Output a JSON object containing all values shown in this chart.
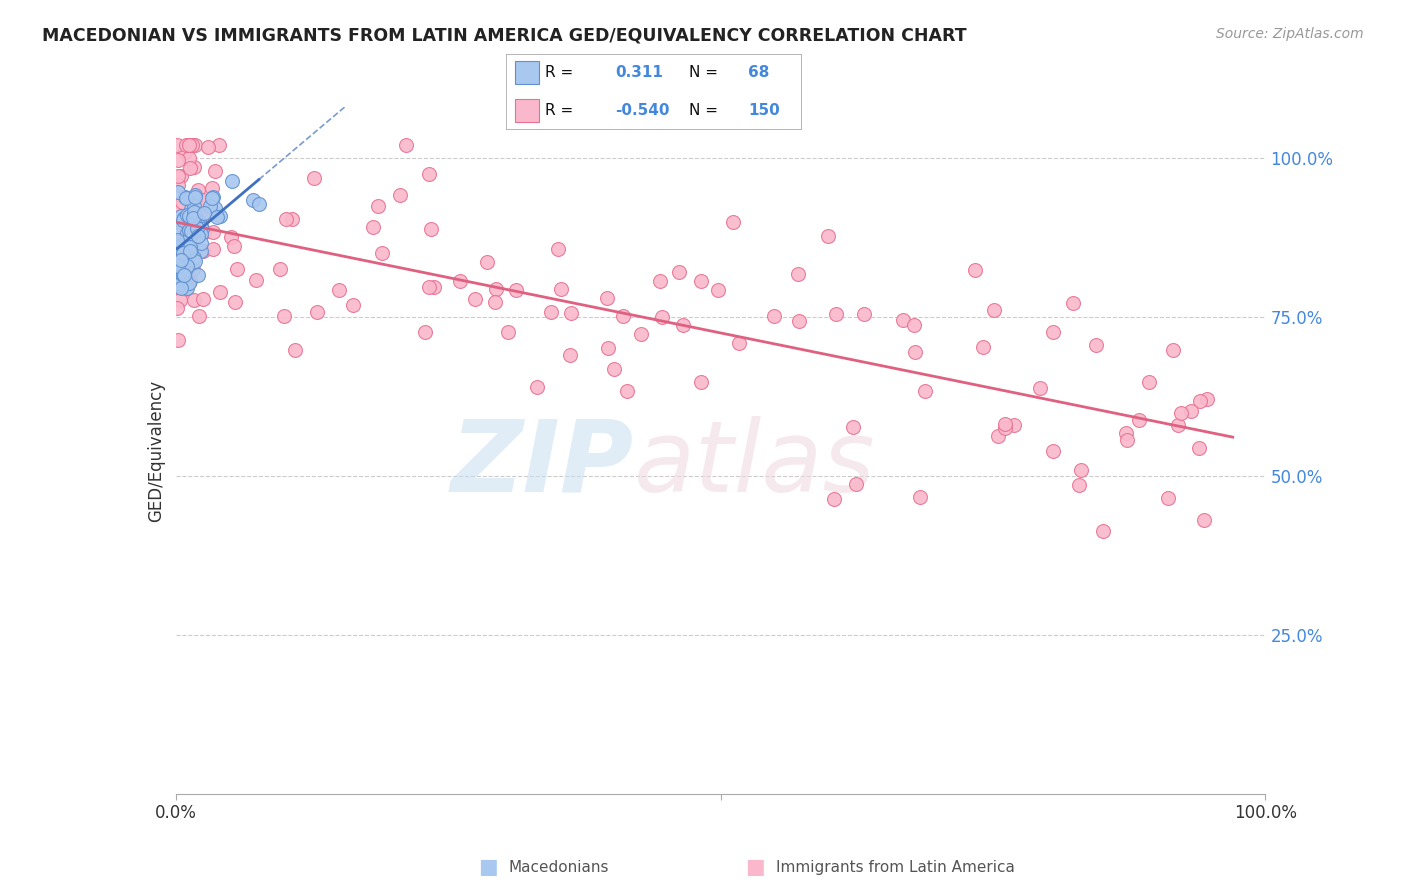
{
  "title": "MACEDONIAN VS IMMIGRANTS FROM LATIN AMERICA GED/EQUIVALENCY CORRELATION CHART",
  "source_text": "Source: ZipAtlas.com",
  "ylabel": "GED/Equivalency",
  "xlim": [
    0.0,
    1.0
  ],
  "ylim": [
    0.0,
    1.08
  ],
  "blue_R": 0.311,
  "blue_N": 68,
  "pink_R": -0.54,
  "pink_N": 150,
  "blue_color": "#a8c8f0",
  "pink_color": "#f9b8cc",
  "blue_edge_color": "#6090d0",
  "pink_edge_color": "#e87090",
  "blue_line_color": "#4070c0",
  "pink_line_color": "#e06080",
  "legend_blue_label": "Macedonians",
  "legend_pink_label": "Immigrants from Latin America"
}
